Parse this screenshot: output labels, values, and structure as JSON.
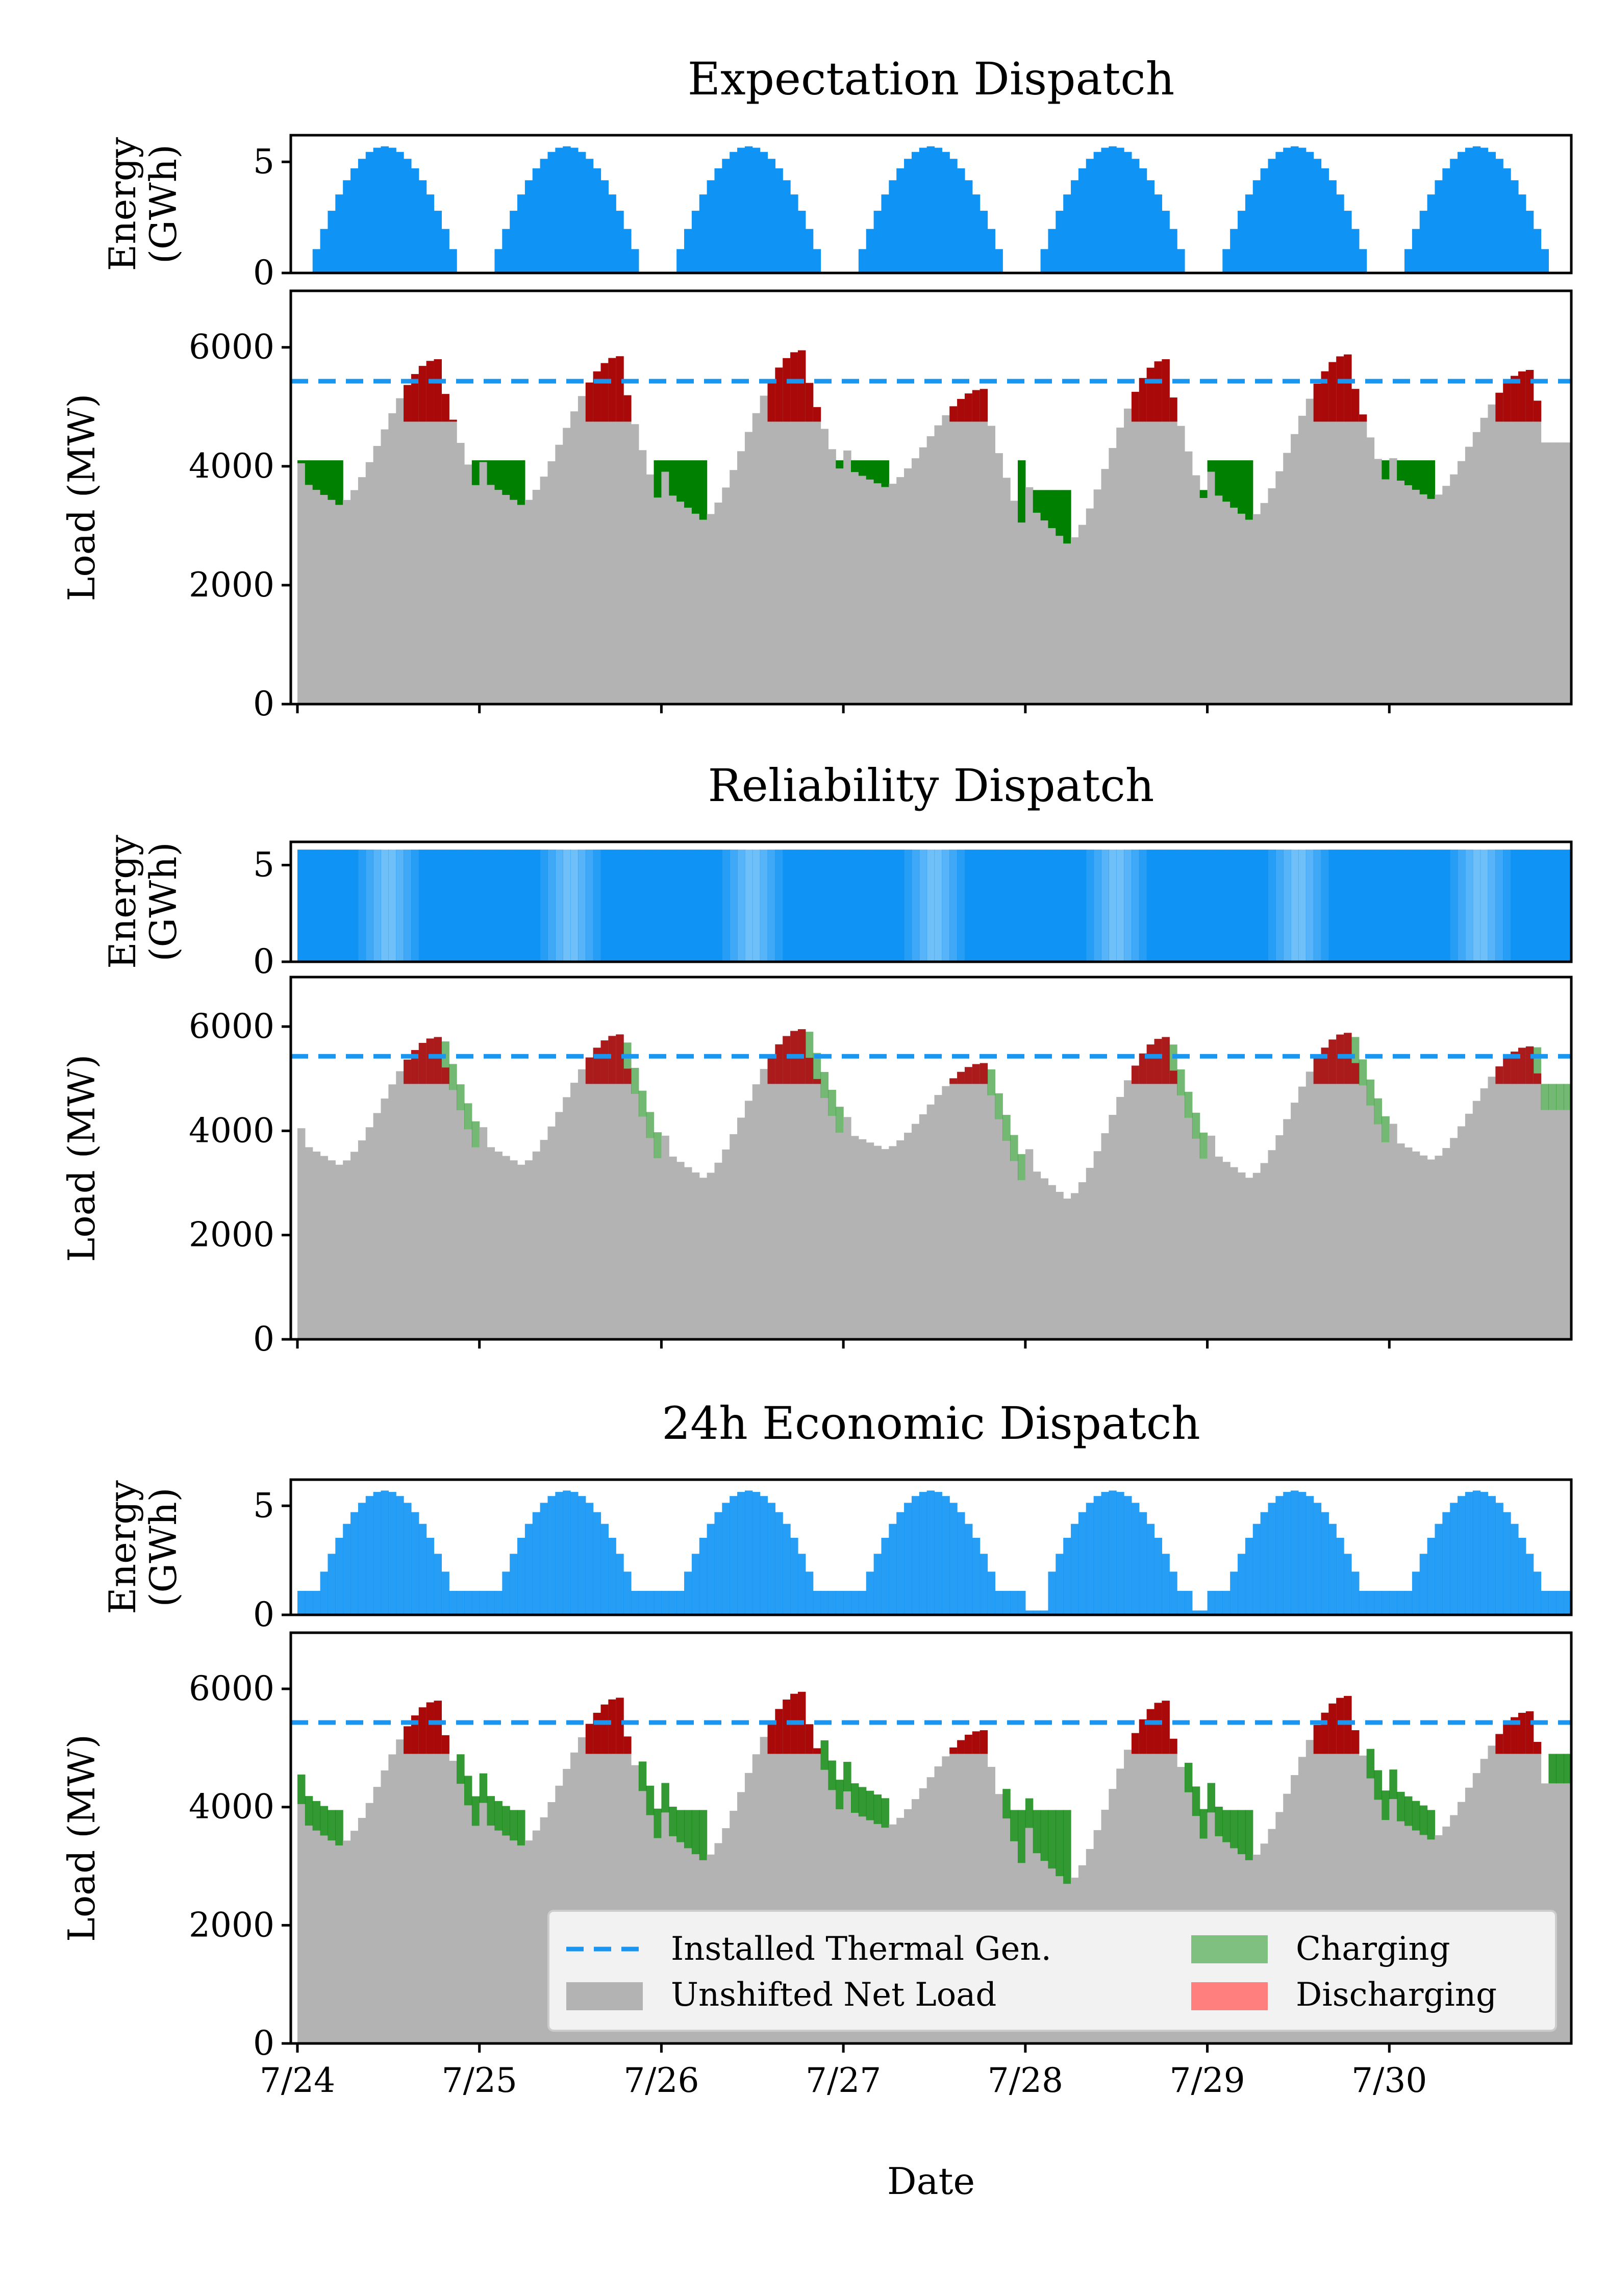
{
  "colors": {
    "thermal": "#1a96f0",
    "energy": "#0f94f5",
    "net_load": "#b3b3b3",
    "charging": "#008000",
    "discharging": "#aa0000",
    "legend_charging": "#7fbf7f",
    "legend_discharging": "#ff7f7f"
  },
  "chart_data": {
    "type": "area",
    "xlabel": "Date",
    "x_ticks": [
      "7/24",
      "7/25",
      "7/26",
      "7/27",
      "7/28",
      "7/29",
      "7/30"
    ],
    "x_range_days": [
      "7/24 00:00",
      "7/30 23:00"
    ],
    "hourly_resolution": true,
    "energy_axis": {
      "label_line1": "Energy",
      "label_line2": "(GWh)",
      "ylim": [
        0,
        6.2
      ],
      "ticks": [
        0,
        5
      ]
    },
    "load_axis": {
      "label": "Load (MW)",
      "ylim": [
        0,
        6950
      ],
      "ticks": [
        0,
        2000,
        4000,
        6000
      ]
    },
    "installed_thermal_generation_mw": 5430,
    "net_load_daily_profile_mw": [
      {
        "day": "7/24",
        "min": 3350,
        "peak": 5800,
        "start": 4050
      },
      {
        "day": "7/25",
        "min": 3350,
        "peak": 5850
      },
      {
        "day": "7/26",
        "min": 3100,
        "peak": 5950
      },
      {
        "day": "7/27",
        "min": 3650,
        "peak": 5300
      },
      {
        "day": "7/28",
        "min": 2700,
        "peak": 5800
      },
      {
        "day": "7/29",
        "min": 3100,
        "peak": 5880
      },
      {
        "day": "7/30",
        "min": 3450,
        "peak": 5620,
        "end": 4400
      }
    ],
    "panels": [
      {
        "title": "Expectation Dispatch",
        "energy_peak_gwh": [
          5.7,
          5.7,
          5.7,
          5.7,
          5.7,
          5.7,
          5.7
        ],
        "style": "deterministic"
      },
      {
        "title": "Reliability Dispatch",
        "energy_level_gwh": 5.8,
        "style": "probabilistic-full"
      },
      {
        "title": "24h Economic Dispatch",
        "energy_peak_gwh": [
          5.7,
          5.7,
          5.7,
          5.7,
          5.7,
          5.7,
          5.7
        ],
        "style": "probabilistic-cycling"
      }
    ],
    "legend": {
      "placement": "lower-right",
      "entries": [
        "Installed Thermal Gen.",
        "Unshifted Net Load",
        "Charging",
        "Discharging"
      ]
    }
  }
}
